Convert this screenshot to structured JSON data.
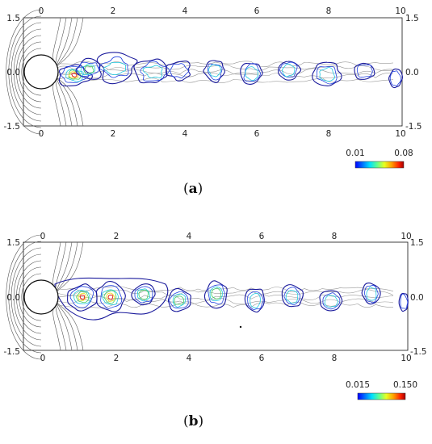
{
  "panels": [
    {
      "id": "a",
      "caption": {
        "open": "(",
        "letter": "a",
        "close": ")"
      },
      "x_ticks_top": [
        "0",
        "2",
        "4",
        "6",
        "8",
        "10"
      ],
      "x_ticks_bottom": [
        "0",
        "2",
        "4",
        "6",
        "8",
        "10"
      ],
      "y_ticks_left": [
        "1.5",
        "0.0",
        "-1.5"
      ],
      "y_ticks_right": [
        "1.5",
        "0.0",
        "-1.5"
      ],
      "colorbar": {
        "min_label": "0.01",
        "max_label": "0.08"
      }
    },
    {
      "id": "b",
      "caption": {
        "open": "(",
        "letter": "b",
        "close": ")"
      },
      "x_ticks_top": [
        "0",
        "2",
        "4",
        "6",
        "8",
        "10"
      ],
      "x_ticks_bottom": [
        "0",
        "2",
        "4",
        "6",
        "8",
        "10"
      ],
      "y_ticks_left": [
        "1.5",
        "0.0",
        "-1.5"
      ],
      "y_ticks_right": [
        "1.5",
        "0.0",
        "-1.5"
      ],
      "colorbar": {
        "min_label": "0.015",
        "max_label": "0.150"
      }
    }
  ],
  "colors": {
    "frame": "#111111",
    "potential_lines": "#555555",
    "wake_gray": "#9a9a9a",
    "contour_outer": "#1a1a9c",
    "contour_blue": "#2040e0",
    "contour_cyan": "#20c8e0",
    "contour_green": "#40d060",
    "contour_yellow": "#f0e020",
    "contour_red": "#e02010",
    "colormap": [
      "#0000ff",
      "#00a0ff",
      "#00ffff",
      "#80ff80",
      "#ffff00",
      "#ff8000",
      "#ff0000",
      "#a00000"
    ]
  }
}
